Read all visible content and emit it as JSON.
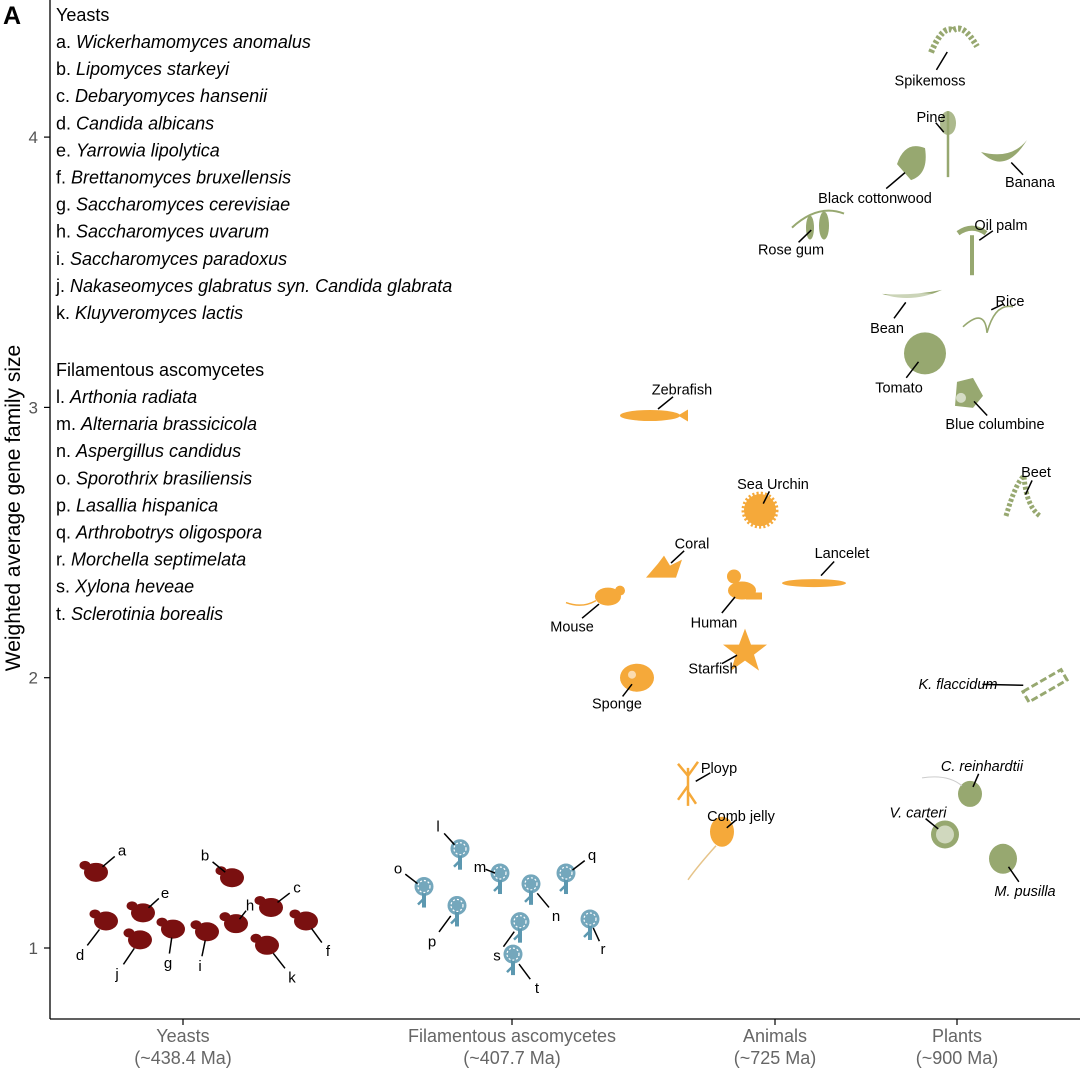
{
  "chart_data": {
    "type": "scatter",
    "panel_label": "A",
    "ylabel": "Weighted average gene family size",
    "ylim": [
      0.75,
      4.6
    ],
    "yticks": [
      1,
      2,
      3,
      4
    ],
    "categories": [
      {
        "id": "yeasts",
        "name": "Yeasts",
        "age": "(~438.4 Ma)"
      },
      {
        "id": "filamentous",
        "name": "Filamentous ascomycetes",
        "age": "(~407.7 Ma)"
      },
      {
        "id": "animals",
        "name": "Animals",
        "age": "(~725 Ma)"
      },
      {
        "id": "plants",
        "name": "Plants",
        "age": "(~900 Ma)"
      }
    ],
    "legend": {
      "yeasts_heading": "Yeasts",
      "yeasts": [
        {
          "key": "a.",
          "species": "Wickerhamomyces anomalus"
        },
        {
          "key": "b.",
          "species": "Lipomyces starkeyi"
        },
        {
          "key": "c.",
          "species": "Debaryomyces hansenii"
        },
        {
          "key": "d.",
          "species": "Candida albicans"
        },
        {
          "key": "e.",
          "species": "Yarrowia lipolytica"
        },
        {
          "key": "f.",
          "species": "Brettanomyces bruxellensis"
        },
        {
          "key": "g.",
          "species": "Saccharomyces cerevisiae"
        },
        {
          "key": "h.",
          "species": "Saccharomyces uvarum"
        },
        {
          "key": "i.",
          "species": "Saccharomyces paradoxus"
        },
        {
          "key": "j.",
          "species": "Nakaseomyces glabratus syn. Candida glabrata"
        },
        {
          "key": "k.",
          "species": "Kluyveromyces lactis"
        }
      ],
      "fungi_heading": "Filamentous ascomycetes",
      "fungi": [
        {
          "key": "l.",
          "species": "Arthonia radiata"
        },
        {
          "key": "m.",
          "species": "Alternaria brassicicola"
        },
        {
          "key": "n.",
          "species": "Aspergillus candidus"
        },
        {
          "key": "o.",
          "species": "Sporothrix brasiliensis"
        },
        {
          "key": "p.",
          "species": "Lasallia hispanica"
        },
        {
          "key": "q.",
          "species": "Arthrobotrys oligospora"
        },
        {
          "key": "r.",
          "species": "Morchella septimelata"
        },
        {
          "key": "s.",
          "species": "Xylona heveae"
        },
        {
          "key": "t.",
          "species": "Sclerotinia borealis"
        }
      ]
    },
    "series": [
      {
        "name": "Yeasts",
        "color": "#7a1010",
        "points": [
          {
            "label": "a",
            "y": 1.28
          },
          {
            "label": "b",
            "y": 1.26
          },
          {
            "label": "c",
            "y": 1.15
          },
          {
            "label": "d",
            "y": 1.1
          },
          {
            "label": "e",
            "y": 1.13
          },
          {
            "label": "f",
            "y": 1.1
          },
          {
            "label": "g",
            "y": 1.07
          },
          {
            "label": "h",
            "y": 1.09
          },
          {
            "label": "i",
            "y": 1.06
          },
          {
            "label": "j",
            "y": 1.03
          },
          {
            "label": "k",
            "y": 1.01
          }
        ]
      },
      {
        "name": "Filamentous ascomycetes",
        "color": "#5c98b0",
        "points": [
          {
            "label": "l",
            "y": 1.36
          },
          {
            "label": "m",
            "y": 1.27
          },
          {
            "label": "n",
            "y": 1.23
          },
          {
            "label": "o",
            "y": 1.22
          },
          {
            "label": "p",
            "y": 1.15
          },
          {
            "label": "q",
            "y": 1.27
          },
          {
            "label": "r",
            "y": 1.1
          },
          {
            "label": "s",
            "y": 1.09
          },
          {
            "label": "t",
            "y": 0.97
          }
        ]
      },
      {
        "name": "Animals",
        "color": "#f5a93a",
        "points": [
          {
            "label": "Zebrafish",
            "y": 2.97
          },
          {
            "label": "Sea Urchin",
            "y": 2.62
          },
          {
            "label": "Coral",
            "y": 2.4
          },
          {
            "label": "Mouse",
            "y": 2.3
          },
          {
            "label": "Human",
            "y": 2.33
          },
          {
            "label": "Lancelet",
            "y": 2.35
          },
          {
            "label": "Sponge",
            "y": 2.0
          },
          {
            "label": "Starfish",
            "y": 2.1
          },
          {
            "label": "Ployp",
            "y": 1.6
          },
          {
            "label": "Comb jelly",
            "y": 1.43
          }
        ]
      },
      {
        "name": "Plants",
        "color": "#97a870",
        "points": [
          {
            "label": "Spikemoss",
            "y": 4.35
          },
          {
            "label": "Pine",
            "y": 4.0
          },
          {
            "label": "Black cottonwood",
            "y": 3.9
          },
          {
            "label": "Banana",
            "y": 3.93
          },
          {
            "label": "Oil palm",
            "y": 3.6
          },
          {
            "label": "Rose gum",
            "y": 3.68
          },
          {
            "label": "Bean",
            "y": 3.42
          },
          {
            "label": "Rice",
            "y": 3.35
          },
          {
            "label": "Tomato",
            "y": 3.2
          },
          {
            "label": "Blue columbine",
            "y": 3.05
          },
          {
            "label": "Beet",
            "y": 2.65
          },
          {
            "label": "K. flaccidum",
            "y": 1.97
          },
          {
            "label": "C. reinhardtii",
            "y": 1.57
          },
          {
            "label": "V. carteri",
            "y": 1.42
          },
          {
            "label": "M. pusilla",
            "y": 1.33
          }
        ]
      }
    ]
  }
}
